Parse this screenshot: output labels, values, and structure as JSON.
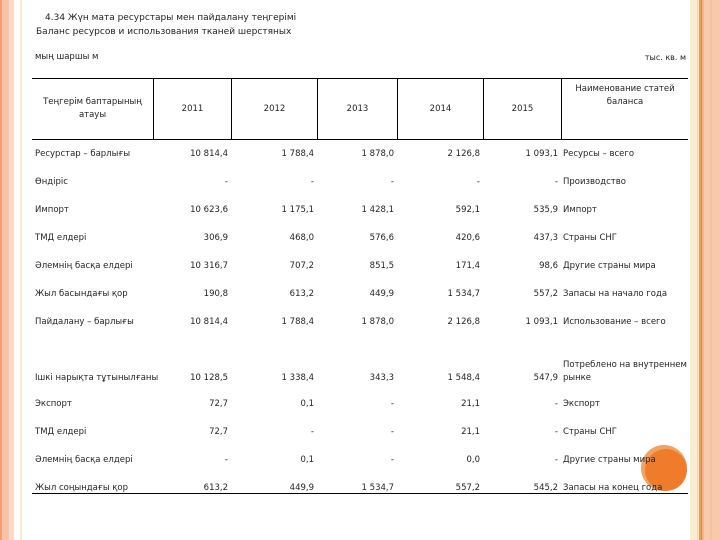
{
  "title": {
    "line1": "4.34 Жүн мата ресурстары мен пайдалану теңгерімі",
    "line2": "Баланс ресурсов и использования тканей шерстяных"
  },
  "units": {
    "left": "мың шаршы м",
    "right": "тыс. кв. м"
  },
  "table": {
    "header": {
      "kk_label": "Теңгерім баптарының атауы",
      "years": [
        "2011",
        "2012",
        "2013",
        "2014",
        "2015"
      ],
      "ru_label": "Наименование статей баланса"
    },
    "rows": [
      {
        "kk": "Ресурстар – барлығы",
        "values": [
          "10 814,4",
          "1 788,4",
          "1 878,0",
          "2 126,8",
          "1 093,1"
        ],
        "ru": "Ресурсы – всего"
      },
      {
        "kk": "Өндіріс",
        "values": [
          "-",
          "-",
          "-",
          "-",
          "-"
        ],
        "ru": "Производство"
      },
      {
        "kk": "Импорт",
        "values": [
          "10 623,6",
          "1 175,1",
          "1 428,1",
          "592,1",
          "535,9"
        ],
        "ru": "Импорт"
      },
      {
        "kk": "ТМД елдері",
        "values": [
          "306,9",
          "468,0",
          "576,6",
          "420,6",
          "437,3"
        ],
        "ru": "Страны СНГ"
      },
      {
        "kk": "Әлемнің басқа елдері",
        "values": [
          "10 316,7",
          "707,2",
          "851,5",
          "171,4",
          "98,6"
        ],
        "ru": "Другие страны мира"
      },
      {
        "kk": "Жыл басындағы қор",
        "values": [
          "190,8",
          "613,2",
          "449,9",
          "1 534,7",
          "557,2"
        ],
        "ru": "Запасы на начало года"
      },
      {
        "kk": "Пайдалану – барлығы",
        "values": [
          "10 814,4",
          "1 788,4",
          "1 878,0",
          "2 126,8",
          "1 093,1"
        ],
        "ru": "Использование – всего"
      },
      {
        "kk": "Ішкі нарықта тұтынылғаны",
        "values": [
          "10 128,5",
          "1 338,4",
          "343,3",
          "1 548,4",
          "547,9"
        ],
        "ru": "Потреблено на внутреннем рынке",
        "tall": true
      },
      {
        "kk": "Экспорт",
        "values": [
          "72,7",
          "0,1",
          "-",
          "21,1",
          "-"
        ],
        "ru": "Экспорт"
      },
      {
        "kk": "ТМД елдері",
        "values": [
          "72,7",
          "-",
          "-",
          "21,1",
          "-"
        ],
        "ru": "Страны СНГ"
      },
      {
        "kk": "Әлемнің басқа елдері",
        "values": [
          "-",
          "0,1",
          "-",
          "0,0",
          "-"
        ],
        "ru": "Другие страны мира"
      },
      {
        "kk": "Жыл соңындағы қор",
        "values": [
          "613,2",
          "449,9",
          "1 534,7",
          "557,2",
          "545,2"
        ],
        "ru": "Запасы на конец года"
      }
    ]
  },
  "decor": {
    "circle_color": "#ee7c2b",
    "circle_halo_color": "#f3a263",
    "stripe_salmon": "#f9c9ae",
    "stripe_cream": "#faecd2",
    "line_color": "#000000"
  }
}
